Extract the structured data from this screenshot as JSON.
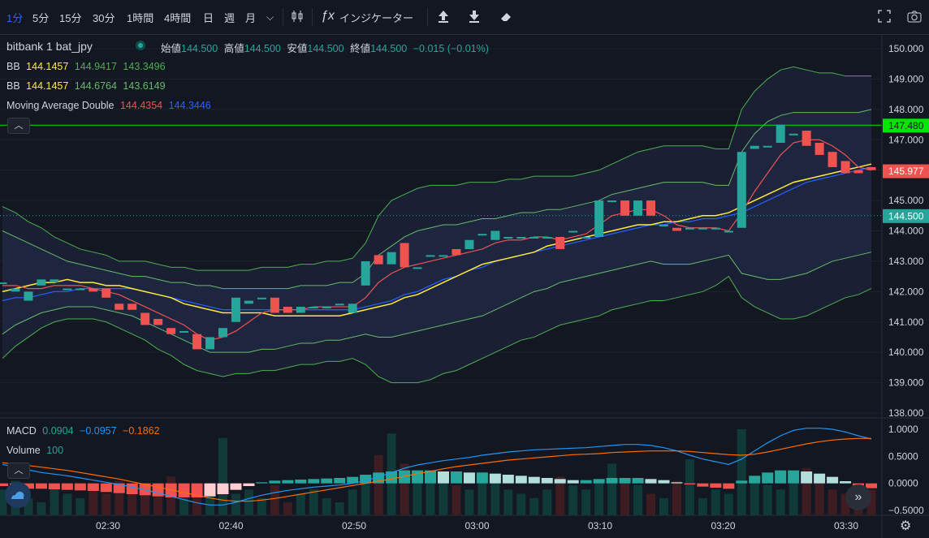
{
  "toolbar": {
    "intervals": [
      "1分",
      "5分",
      "15分",
      "30分",
      "1時間",
      "4時間",
      "日",
      "週",
      "月"
    ],
    "active_interval": "1分",
    "indicators_label": "インジケーター"
  },
  "legend": {
    "symbol": "bitbank  1  bat_jpy",
    "ohlc": [
      {
        "label": "始値",
        "value": "144.500"
      },
      {
        "label": "高値",
        "value": "144.500"
      },
      {
        "label": "安値",
        "value": "144.500"
      },
      {
        "label": "終値",
        "value": "144.500"
      }
    ],
    "change": "−0.015 (−0.01%)",
    "bb1": {
      "label": "BB",
      "mid": "144.1457",
      "upper": "144.9417",
      "lower": "143.3496"
    },
    "bb2": {
      "label": "BB",
      "mid": "144.1457",
      "upper": "144.6764",
      "lower": "143.6149"
    },
    "ma": {
      "label": "Moving Average Double",
      "fast": "144.4354",
      "slow": "144.3446"
    },
    "macd": {
      "label": "MACD",
      "hist": "0.0904",
      "macd": "−0.0957",
      "signal": "−0.1862"
    },
    "volume": {
      "label": "Volume",
      "value": "100"
    }
  },
  "colors": {
    "up": "#26a69a",
    "down": "#ef5350",
    "bb_outer": "#4caf50",
    "bb_inner": "#66bb6a",
    "ma_fast": "#ef5350",
    "ma_slow": "#2962ff",
    "ma_long": "#ffeb3b",
    "macd": "#2196f3",
    "signal": "#ff6d00",
    "hline": "#00e600"
  },
  "price_labels": {
    "hline": "147.480",
    "current": "145.977",
    "last": "144.500"
  },
  "chart_data": {
    "type": "candlestick",
    "y_ticks": [
      "150.000",
      "149.000",
      "148.000",
      "147.000",
      "146.000",
      "145.000",
      "144.000",
      "143.000",
      "142.000",
      "141.000",
      "140.000",
      "139.000",
      "138.000"
    ],
    "x_ticks": [
      "02:30",
      "02:40",
      "02:50",
      "03:00",
      "03:10",
      "03:20",
      "03:30"
    ],
    "macd_ticks": [
      "1.0000",
      "0.5000",
      "0.0000",
      "−0.5000"
    ],
    "ylim": [
      138.0,
      150.0
    ],
    "hline": 147.48,
    "last_price": 144.5,
    "candles": [
      {
        "o": 142.3,
        "c": 142.3
      },
      {
        "o": 142.0,
        "c": 142.1
      },
      {
        "o": 141.7,
        "c": 142.0
      },
      {
        "o": 142.2,
        "c": 142.4
      },
      {
        "o": 142.3,
        "c": 142.4
      },
      {
        "o": 142.1,
        "c": 142.1
      },
      {
        "o": 142.1,
        "c": 142.1
      },
      {
        "o": 142.1,
        "c": 142.0
      },
      {
        "o": 142.1,
        "c": 141.8
      },
      {
        "o": 141.6,
        "c": 141.4
      },
      {
        "o": 141.6,
        "c": 141.4
      },
      {
        "o": 141.3,
        "c": 140.9
      },
      {
        "o": 141.1,
        "c": 140.9
      },
      {
        "o": 140.8,
        "c": 140.6
      },
      {
        "o": 140.7,
        "c": 140.7
      },
      {
        "o": 140.6,
        "c": 140.1
      },
      {
        "o": 140.1,
        "c": 140.5
      },
      {
        "o": 140.5,
        "c": 140.8
      },
      {
        "o": 141.0,
        "c": 141.8
      },
      {
        "o": 141.6,
        "c": 141.7
      },
      {
        "o": 141.8,
        "c": 141.8
      },
      {
        "o": 141.8,
        "c": 141.3
      },
      {
        "o": 141.5,
        "c": 141.3
      },
      {
        "o": 141.3,
        "c": 141.5
      },
      {
        "o": 141.5,
        "c": 141.5
      },
      {
        "o": 141.5,
        "c": 141.5
      },
      {
        "o": 141.6,
        "c": 141.6
      },
      {
        "o": 141.3,
        "c": 141.6
      },
      {
        "o": 142.2,
        "c": 143.0
      },
      {
        "o": 143.2,
        "c": 142.9
      },
      {
        "o": 142.9,
        "c": 143.3
      },
      {
        "o": 143.6,
        "c": 142.8
      },
      {
        "o": 142.8,
        "c": 142.8
      },
      {
        "o": 143.2,
        "c": 143.2
      },
      {
        "o": 143.2,
        "c": 143.2
      },
      {
        "o": 143.4,
        "c": 143.2
      },
      {
        "o": 143.4,
        "c": 143.7
      },
      {
        "o": 143.9,
        "c": 143.9
      },
      {
        "o": 143.7,
        "c": 144.0
      },
      {
        "o": 143.8,
        "c": 143.8
      },
      {
        "o": 143.8,
        "c": 143.8
      },
      {
        "o": 143.8,
        "c": 143.8
      },
      {
        "o": 143.8,
        "c": 143.8
      },
      {
        "o": 143.8,
        "c": 143.4
      },
      {
        "o": 144.0,
        "c": 144.0
      },
      {
        "o": 143.8,
        "c": 143.8
      },
      {
        "o": 143.8,
        "c": 145.0
      },
      {
        "o": 145.0,
        "c": 145.0
      },
      {
        "o": 145.0,
        "c": 144.5
      },
      {
        "o": 144.5,
        "c": 145.0
      },
      {
        "o": 145.0,
        "c": 144.5
      },
      {
        "o": 144.2,
        "c": 144.2
      },
      {
        "o": 144.1,
        "c": 144.0
      },
      {
        "o": 144.1,
        "c": 144.1
      },
      {
        "o": 144.1,
        "c": 144.1
      },
      {
        "o": 144.1,
        "c": 144.1
      },
      {
        "o": 144.0,
        "c": 144.0
      },
      {
        "o": 144.1,
        "c": 146.6
      },
      {
        "o": 146.7,
        "c": 146.8
      },
      {
        "o": 146.8,
        "c": 146.8
      },
      {
        "o": 146.9,
        "c": 147.5
      },
      {
        "o": 147.2,
        "c": 147.2
      },
      {
        "o": 147.3,
        "c": 146.8
      },
      {
        "o": 146.9,
        "c": 146.5
      },
      {
        "o": 146.6,
        "c": 146.1
      },
      {
        "o": 146.3,
        "c": 145.9
      },
      {
        "o": 146.0,
        "c": 145.9
      },
      {
        "o": 146.1,
        "c": 146.0
      }
    ],
    "ma_fast": [
      142.2,
      142.2,
      142.1,
      142.1,
      142.2,
      142.2,
      142.2,
      142.1,
      142.0,
      141.9,
      141.7,
      141.5,
      141.3,
      141.1,
      140.9,
      140.6,
      140.4,
      140.5,
      140.7,
      141.0,
      141.3,
      141.4,
      141.4,
      141.4,
      141.5,
      141.5,
      141.5,
      141.5,
      141.8,
      142.3,
      142.6,
      142.8,
      142.9,
      143.0,
      143.1,
      143.2,
      143.3,
      143.4,
      143.6,
      143.7,
      143.7,
      143.8,
      143.8,
      143.7,
      143.8,
      143.9,
      144.2,
      144.5,
      144.6,
      144.7,
      144.7,
      144.5,
      144.2,
      144.1,
      144.1,
      144.1,
      144.0,
      144.6,
      145.3,
      145.9,
      146.5,
      146.9,
      147.0,
      147.0,
      146.8,
      146.5,
      146.1,
      146.0
    ],
    "ma_slow": [
      141.7,
      141.8,
      141.8,
      141.9,
      142.0,
      142.0,
      142.1,
      142.1,
      142.1,
      142.1,
      142.1,
      142.0,
      141.9,
      141.8,
      141.7,
      141.6,
      141.5,
      141.4,
      141.4,
      141.4,
      141.4,
      141.4,
      141.4,
      141.4,
      141.4,
      141.4,
      141.4,
      141.4,
      141.5,
      141.6,
      141.7,
      141.9,
      142.0,
      142.2,
      142.4,
      142.5,
      142.7,
      142.8,
      143.0,
      143.1,
      143.2,
      143.3,
      143.4,
      143.5,
      143.6,
      143.7,
      143.8,
      143.9,
      144.0,
      144.1,
      144.2,
      144.2,
      144.3,
      144.3,
      144.4,
      144.4,
      144.5,
      144.6,
      144.8,
      145.0,
      145.2,
      145.4,
      145.6,
      145.7,
      145.8,
      145.9,
      146.0,
      146.1
    ],
    "ma_long": [
      142.0,
      142.1,
      142.2,
      142.3,
      142.3,
      142.4,
      142.3,
      142.3,
      142.2,
      142.2,
      142.1,
      142.0,
      141.9,
      141.8,
      141.6,
      141.5,
      141.4,
      141.3,
      141.3,
      141.3,
      141.3,
      141.2,
      141.2,
      141.2,
      141.2,
      141.2,
      141.2,
      141.3,
      141.4,
      141.5,
      141.6,
      141.8,
      141.9,
      142.1,
      142.3,
      142.5,
      142.7,
      142.9,
      143.0,
      143.1,
      143.2,
      143.3,
      143.5,
      143.6,
      143.7,
      143.8,
      143.9,
      144.0,
      144.1,
      144.2,
      144.2,
      144.3,
      144.3,
      144.4,
      144.5,
      144.5,
      144.6,
      144.8,
      145.0,
      145.2,
      145.4,
      145.6,
      145.7,
      145.8,
      145.9,
      146.0,
      146.1,
      146.2
    ],
    "bb_outer_upper": [
      144.8,
      144.6,
      144.3,
      144.1,
      143.8,
      143.6,
      143.4,
      143.3,
      143.2,
      143.0,
      143.0,
      143.0,
      142.9,
      142.8,
      142.8,
      142.7,
      142.7,
      142.7,
      142.7,
      142.7,
      142.8,
      142.8,
      142.8,
      142.9,
      142.9,
      143.0,
      143.0,
      143.1,
      143.6,
      144.5,
      145.0,
      145.2,
      145.4,
      145.5,
      145.5,
      145.5,
      145.6,
      145.6,
      145.6,
      145.7,
      145.7,
      145.8,
      145.8,
      145.8,
      145.8,
      145.9,
      146.0,
      146.2,
      146.4,
      146.6,
      146.7,
      146.8,
      146.8,
      146.8,
      146.8,
      146.7,
      146.7,
      148.0,
      148.6,
      149.0,
      149.3,
      149.4,
      149.3,
      149.2,
      149.2,
      149.1,
      149.1,
      149.1
    ],
    "bb_inner_upper": [
      144.0,
      143.8,
      143.6,
      143.4,
      143.2,
      143.0,
      142.9,
      142.8,
      142.7,
      142.6,
      142.5,
      142.5,
      142.4,
      142.3,
      142.3,
      142.2,
      142.2,
      142.1,
      142.1,
      142.1,
      142.1,
      142.1,
      142.1,
      142.2,
      142.2,
      142.2,
      142.3,
      142.3,
      142.6,
      143.2,
      143.5,
      143.8,
      144.0,
      144.1,
      144.2,
      144.2,
      144.3,
      144.4,
      144.4,
      144.5,
      144.6,
      144.6,
      144.7,
      144.7,
      144.8,
      144.9,
      145.0,
      145.2,
      145.3,
      145.4,
      145.5,
      145.6,
      145.6,
      145.6,
      145.6,
      145.5,
      145.5,
      146.6,
      147.2,
      147.6,
      147.8,
      147.9,
      147.9,
      147.9,
      147.9,
      147.9,
      147.9,
      148.0
    ],
    "bb_inner_lower": [
      140.6,
      140.9,
      141.1,
      141.3,
      141.4,
      141.5,
      141.5,
      141.5,
      141.4,
      141.3,
      141.2,
      141.0,
      140.8,
      140.6,
      140.4,
      140.2,
      140.0,
      140.0,
      140.0,
      140.0,
      140.1,
      140.1,
      140.2,
      140.3,
      140.3,
      140.4,
      140.4,
      140.5,
      140.6,
      140.5,
      140.5,
      140.6,
      140.7,
      140.8,
      140.9,
      141.0,
      141.1,
      141.2,
      141.4,
      141.6,
      141.8,
      142.0,
      142.1,
      142.3,
      142.4,
      142.5,
      142.6,
      142.7,
      142.8,
      142.9,
      143.0,
      142.9,
      142.9,
      142.9,
      143.0,
      143.1,
      143.2,
      142.6,
      142.5,
      142.4,
      142.4,
      142.5,
      142.6,
      142.8,
      143.0,
      143.1,
      143.2,
      143.3
    ],
    "bb_outer_lower": [
      139.8,
      140.2,
      140.5,
      140.8,
      141.0,
      141.1,
      141.1,
      141.1,
      141.0,
      140.8,
      140.6,
      140.4,
      140.1,
      139.9,
      139.6,
      139.4,
      139.3,
      139.2,
      139.3,
      139.3,
      139.4,
      139.4,
      139.5,
      139.6,
      139.6,
      139.7,
      139.7,
      139.8,
      139.6,
      139.2,
      139.0,
      139.0,
      139.0,
      139.1,
      139.3,
      139.4,
      139.6,
      139.8,
      140.0,
      140.2,
      140.4,
      140.5,
      140.7,
      140.9,
      141.0,
      141.1,
      141.2,
      141.4,
      141.5,
      141.6,
      141.7,
      141.7,
      141.8,
      141.9,
      142.0,
      142.2,
      142.5,
      141.8,
      141.5,
      141.3,
      141.1,
      141.1,
      141.2,
      141.4,
      141.6,
      141.8,
      141.9,
      142.1
    ],
    "volume": [
      30,
      40,
      20,
      15,
      35,
      25,
      20,
      30,
      25,
      40,
      35,
      25,
      30,
      45,
      20,
      25,
      35,
      90,
      25,
      30,
      20,
      35,
      15,
      25,
      30,
      20,
      15,
      30,
      45,
      70,
      95,
      60,
      50,
      40,
      45,
      35,
      30,
      50,
      40,
      30,
      25,
      20,
      30,
      45,
      35,
      30,
      40,
      60,
      40,
      35,
      25,
      20,
      40,
      65,
      20,
      30,
      25,
      100,
      40,
      35,
      30,
      45,
      55,
      40,
      30,
      25,
      20,
      30
    ],
    "macd_hist": [
      -0.05,
      -0.08,
      -0.1,
      -0.1,
      -0.11,
      -0.12,
      -0.13,
      -0.14,
      -0.16,
      -0.18,
      -0.2,
      -0.22,
      -0.24,
      -0.26,
      -0.26,
      -0.26,
      -0.24,
      -0.2,
      -0.12,
      -0.05,
      0.02,
      0.05,
      0.06,
      0.07,
      0.08,
      0.09,
      0.1,
      0.12,
      0.16,
      0.2,
      0.22,
      0.24,
      0.24,
      0.24,
      0.22,
      0.22,
      0.2,
      0.2,
      0.18,
      0.16,
      0.14,
      0.12,
      0.1,
      0.08,
      0.06,
      0.06,
      0.08,
      0.1,
      0.1,
      0.1,
      0.08,
      0.06,
      0.02,
      -0.02,
      -0.06,
      -0.08,
      -0.1,
      0.05,
      0.14,
      0.2,
      0.24,
      0.24,
      0.22,
      0.18,
      0.12,
      0.04,
      -0.04,
      -0.09
    ],
    "macd_line": [
      0.35,
      0.3,
      0.25,
      0.2,
      0.17,
      0.14,
      0.1,
      0.06,
      0.02,
      -0.02,
      -0.07,
      -0.12,
      -0.18,
      -0.24,
      -0.3,
      -0.36,
      -0.4,
      -0.4,
      -0.35,
      -0.28,
      -0.22,
      -0.17,
      -0.13,
      -0.1,
      -0.07,
      -0.05,
      -0.03,
      0.0,
      0.05,
      0.12,
      0.2,
      0.28,
      0.34,
      0.38,
      0.42,
      0.45,
      0.48,
      0.52,
      0.55,
      0.58,
      0.6,
      0.62,
      0.63,
      0.64,
      0.65,
      0.66,
      0.68,
      0.7,
      0.72,
      0.72,
      0.7,
      0.66,
      0.6,
      0.52,
      0.45,
      0.4,
      0.35,
      0.45,
      0.6,
      0.75,
      0.88,
      0.98,
      1.02,
      1.02,
      1.0,
      0.95,
      0.88,
      0.82
    ],
    "signal_line": [
      0.38,
      0.36,
      0.33,
      0.3,
      0.27,
      0.24,
      0.2,
      0.16,
      0.12,
      0.08,
      0.03,
      -0.02,
      -0.07,
      -0.12,
      -0.17,
      -0.22,
      -0.27,
      -0.31,
      -0.33,
      -0.33,
      -0.31,
      -0.28,
      -0.24,
      -0.2,
      -0.16,
      -0.12,
      -0.08,
      -0.04,
      0.0,
      0.04,
      0.08,
      0.13,
      0.18,
      0.22,
      0.27,
      0.31,
      0.34,
      0.37,
      0.4,
      0.43,
      0.45,
      0.47,
      0.49,
      0.51,
      0.53,
      0.54,
      0.55,
      0.57,
      0.58,
      0.59,
      0.6,
      0.6,
      0.6,
      0.59,
      0.57,
      0.55,
      0.53,
      0.52,
      0.54,
      0.58,
      0.63,
      0.68,
      0.73,
      0.77,
      0.8,
      0.82,
      0.83,
      0.83
    ]
  }
}
